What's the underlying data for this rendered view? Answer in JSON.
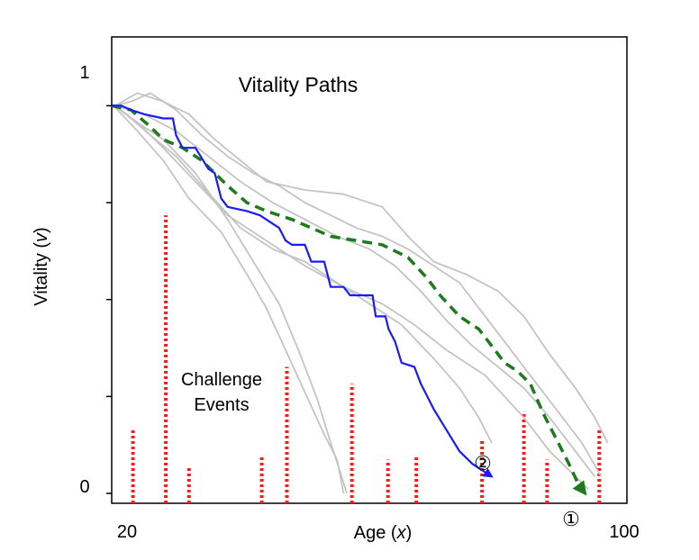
{
  "chart_data": {
    "type": "line",
    "title": "Vitality Paths",
    "xlabel_main": "Age (",
    "xlabel_var": "x",
    "xlabel_close": ")",
    "ylabel_main": "Vitality (",
    "ylabel_var": "v",
    "ylabel_close": ")",
    "x_tick_labels": [
      {
        "value": 20,
        "label": "20"
      },
      {
        "value": 100,
        "label": "100"
      }
    ],
    "y_tick_labels": [
      {
        "value": 0,
        "label": "0"
      },
      {
        "value": 1,
        "label": "1"
      }
    ],
    "y_ticks": [
      0,
      0.23,
      0.46,
      0.69,
      0.92
    ],
    "xlim": [
      20,
      100
    ],
    "ylim": [
      0,
      1
    ],
    "grid": false,
    "event_label_line1": "Challenge",
    "event_label_line2": "Events",
    "marker_1": "①",
    "marker_2": "②",
    "colors": {
      "gray": "#c4c4c4",
      "blue": "#1a1aff",
      "green": "#1d7a1d",
      "red": "#ff1a1a"
    },
    "challenge_events": [
      {
        "x": 23.3,
        "h": 0.15
      },
      {
        "x": 28.4,
        "h": 0.66
      },
      {
        "x": 32.0,
        "h": 0.06
      },
      {
        "x": 43.3,
        "h": 0.09
      },
      {
        "x": 47.2,
        "h": 0.3
      },
      {
        "x": 57.3,
        "h": 0.26
      },
      {
        "x": 62.9,
        "h": 0.08
      },
      {
        "x": 67.3,
        "h": 0.09
      },
      {
        "x": 77.5,
        "h": 0.13
      },
      {
        "x": 84.0,
        "h": 0.19
      },
      {
        "x": 87.6,
        "h": 0.08
      },
      {
        "x": 95.7,
        "h": 0.15
      }
    ],
    "gray_paths": [
      [
        [
          20.6,
          0.92
        ],
        [
          24,
          0.88
        ],
        [
          28,
          0.84
        ],
        [
          33,
          0.76
        ],
        [
          38,
          0.65
        ],
        [
          42,
          0.55
        ],
        [
          46,
          0.45
        ],
        [
          49,
          0.34
        ],
        [
          52,
          0.22
        ],
        [
          54,
          0.12
        ],
        [
          55.5,
          0.05
        ],
        [
          56.5,
          0.0
        ]
      ],
      [
        [
          20.3,
          0.92
        ],
        [
          24,
          0.86
        ],
        [
          28,
          0.79
        ],
        [
          32,
          0.7
        ],
        [
          37,
          0.62
        ],
        [
          41,
          0.52
        ],
        [
          44,
          0.44
        ],
        [
          47,
          0.34
        ],
        [
          50,
          0.24
        ],
        [
          53,
          0.14
        ],
        [
          55,
          0.08
        ],
        [
          56,
          0.0
        ]
      ],
      [
        [
          20.5,
          0.92
        ],
        [
          23,
          0.89
        ],
        [
          26,
          0.85
        ],
        [
          30,
          0.8
        ],
        [
          34,
          0.73
        ],
        [
          40,
          0.63
        ],
        [
          45,
          0.58
        ],
        [
          50,
          0.55
        ],
        [
          55,
          0.5
        ],
        [
          60,
          0.45
        ],
        [
          65,
          0.4
        ],
        [
          70,
          0.32
        ],
        [
          74,
          0.25
        ],
        [
          77,
          0.18
        ],
        [
          79,
          0.12
        ]
      ],
      [
        [
          20.5,
          0.92
        ],
        [
          24,
          0.88
        ],
        [
          28,
          0.82
        ],
        [
          33,
          0.74
        ],
        [
          38,
          0.66
        ],
        [
          44,
          0.6
        ],
        [
          50,
          0.54
        ],
        [
          56,
          0.49
        ],
        [
          62,
          0.45
        ],
        [
          67,
          0.4
        ],
        [
          72,
          0.34
        ],
        [
          78,
          0.28
        ],
        [
          84,
          0.18
        ],
        [
          88,
          0.1
        ],
        [
          92,
          0.04
        ],
        [
          94,
          0.01
        ]
      ],
      [
        [
          20.5,
          0.92
        ],
        [
          25,
          0.9
        ],
        [
          30,
          0.86
        ],
        [
          35,
          0.8
        ],
        [
          40,
          0.74
        ],
        [
          45,
          0.69
        ],
        [
          50,
          0.65
        ],
        [
          55,
          0.61
        ],
        [
          60,
          0.58
        ],
        [
          64,
          0.54
        ],
        [
          68,
          0.48
        ],
        [
          72,
          0.41
        ],
        [
          76,
          0.35
        ],
        [
          80,
          0.3
        ],
        [
          84,
          0.25
        ],
        [
          88,
          0.18
        ],
        [
          92,
          0.1
        ],
        [
          95,
          0.04
        ]
      ],
      [
        [
          20.5,
          0.92
        ],
        [
          23,
          0.93
        ],
        [
          26,
          0.95
        ],
        [
          30,
          0.91
        ],
        [
          34,
          0.85
        ],
        [
          38,
          0.8
        ],
        [
          42,
          0.76
        ],
        [
          46,
          0.73
        ],
        [
          50,
          0.69
        ],
        [
          54,
          0.66
        ],
        [
          58,
          0.63
        ],
        [
          62,
          0.61
        ],
        [
          66,
          0.58
        ],
        [
          70,
          0.54
        ],
        [
          74,
          0.5
        ],
        [
          78,
          0.42
        ],
        [
          82,
          0.34
        ],
        [
          86,
          0.26
        ],
        [
          89,
          0.2
        ],
        [
          93,
          0.12
        ],
        [
          96,
          0.04
        ]
      ],
      [
        [
          20.5,
          0.92
        ],
        [
          24,
          0.95
        ],
        [
          28,
          0.93
        ],
        [
          32,
          0.9
        ],
        [
          36,
          0.84
        ],
        [
          40,
          0.79
        ],
        [
          44,
          0.74
        ],
        [
          50,
          0.72
        ],
        [
          56,
          0.71
        ],
        [
          62,
          0.68
        ],
        [
          66,
          0.61
        ],
        [
          70,
          0.55
        ],
        [
          75,
          0.52
        ],
        [
          80,
          0.48
        ],
        [
          84,
          0.42
        ],
        [
          88,
          0.33
        ],
        [
          92,
          0.25
        ],
        [
          95,
          0.18
        ],
        [
          97,
          0.12
        ]
      ]
    ],
    "blue_path": [
      [
        20,
        0.92
      ],
      [
        21.5,
        0.92
      ],
      [
        23,
        0.91
      ],
      [
        25,
        0.9
      ],
      [
        28,
        0.89
      ],
      [
        29.5,
        0.89
      ],
      [
        30,
        0.85
      ],
      [
        31,
        0.82
      ],
      [
        33,
        0.82
      ],
      [
        35,
        0.77
      ],
      [
        36,
        0.76
      ],
      [
        37,
        0.7
      ],
      [
        38,
        0.68
      ],
      [
        41,
        0.67
      ],
      [
        43,
        0.66
      ],
      [
        46,
        0.63
      ],
      [
        47,
        0.6
      ],
      [
        48,
        0.59
      ],
      [
        50,
        0.59
      ],
      [
        51,
        0.55
      ],
      [
        53,
        0.55
      ],
      [
        54,
        0.49
      ],
      [
        56,
        0.49
      ],
      [
        57,
        0.47
      ],
      [
        60,
        0.47
      ],
      [
        60.5,
        0.47
      ],
      [
        61,
        0.42
      ],
      [
        62.5,
        0.42
      ],
      [
        63,
        0.39
      ],
      [
        64,
        0.36
      ],
      [
        65,
        0.31
      ],
      [
        67,
        0.3
      ],
      [
        68,
        0.26
      ],
      [
        70,
        0.2
      ],
      [
        72,
        0.15
      ],
      [
        74,
        0.1
      ],
      [
        76,
        0.07
      ],
      [
        78,
        0.05
      ],
      [
        79,
        0.04
      ]
    ],
    "green_path": [
      [
        20,
        0.92
      ],
      [
        23,
        0.91
      ],
      [
        26,
        0.87
      ],
      [
        28,
        0.84
      ],
      [
        31,
        0.82
      ],
      [
        34,
        0.79
      ],
      [
        36,
        0.76
      ],
      [
        38,
        0.73
      ],
      [
        41,
        0.69
      ],
      [
        44,
        0.67
      ],
      [
        48,
        0.65
      ],
      [
        51,
        0.63
      ],
      [
        54,
        0.61
      ],
      [
        58,
        0.6
      ],
      [
        62,
        0.59
      ],
      [
        66,
        0.56
      ],
      [
        69,
        0.51
      ],
      [
        71,
        0.47
      ],
      [
        74,
        0.42
      ],
      [
        77,
        0.39
      ],
      [
        79,
        0.35
      ],
      [
        81,
        0.31
      ],
      [
        83,
        0.29
      ],
      [
        85,
        0.26
      ],
      [
        87,
        0.19
      ],
      [
        89,
        0.13
      ],
      [
        91,
        0.07
      ],
      [
        92.5,
        0.02
      ],
      [
        93.5,
        0.0
      ]
    ]
  }
}
